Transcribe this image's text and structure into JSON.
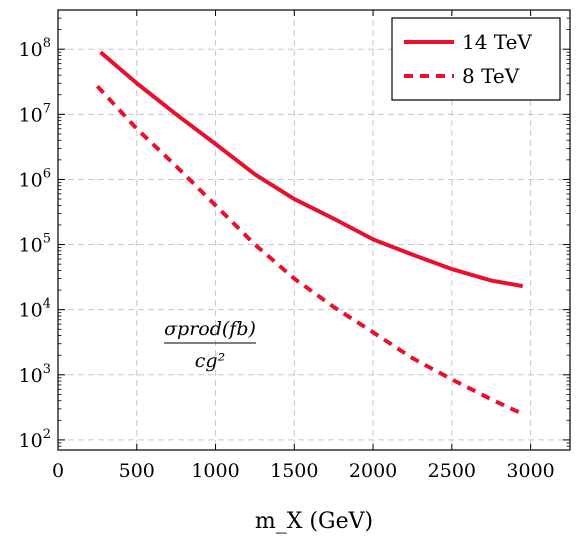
{
  "chart_data": {
    "type": "line",
    "title": "",
    "xlabel": "m_X (GeV)",
    "ylabel": "",
    "xlim": [
      0,
      3250
    ],
    "ylim": [
      70,
      400000000
    ],
    "y_scale": "log",
    "grid": true,
    "grid_style": "dashed",
    "legend_placement": "top-right",
    "x_ticks": [
      0,
      500,
      1000,
      1500,
      2000,
      2500,
      3000
    ],
    "x_tick_labels": [
      "0",
      "500",
      "1000",
      "1500",
      "2000",
      "2500",
      "3000"
    ],
    "y_ticks": [
      100,
      1000,
      10000,
      100000,
      1000000,
      10000000,
      100000000
    ],
    "y_tick_labels": [
      {
        "base": "10",
        "exp": "2"
      },
      {
        "base": "10",
        "exp": "3"
      },
      {
        "base": "10",
        "exp": "4"
      },
      {
        "base": "10",
        "exp": "5"
      },
      {
        "base": "10",
        "exp": "6"
      },
      {
        "base": "10",
        "exp": "7"
      },
      {
        "base": "10",
        "exp": "8"
      }
    ],
    "annotation": {
      "numerator": "σprod(fb)",
      "denominator": "cg²"
    },
    "series": [
      {
        "name": "14 TeV",
        "color": "#e8112d",
        "style": "solid",
        "x": [
          270,
          500,
          750,
          1000,
          1250,
          1500,
          1750,
          2000,
          2250,
          2500,
          2750,
          2950
        ],
        "y": [
          90000000,
          30000000,
          10000000,
          3500000,
          1200000,
          500000,
          250000,
          120000,
          70000,
          42000,
          28000,
          23000
        ]
      },
      {
        "name": "8 TeV",
        "color": "#e8112d",
        "style": "dashed",
        "x": [
          250,
          500,
          750,
          1000,
          1250,
          1500,
          1750,
          2000,
          2250,
          2500,
          2750,
          2950
        ],
        "y": [
          27000000,
          6000000,
          1600000,
          400000,
          100000,
          30000,
          11000,
          4500,
          1800,
          850,
          420,
          250
        ]
      }
    ]
  }
}
